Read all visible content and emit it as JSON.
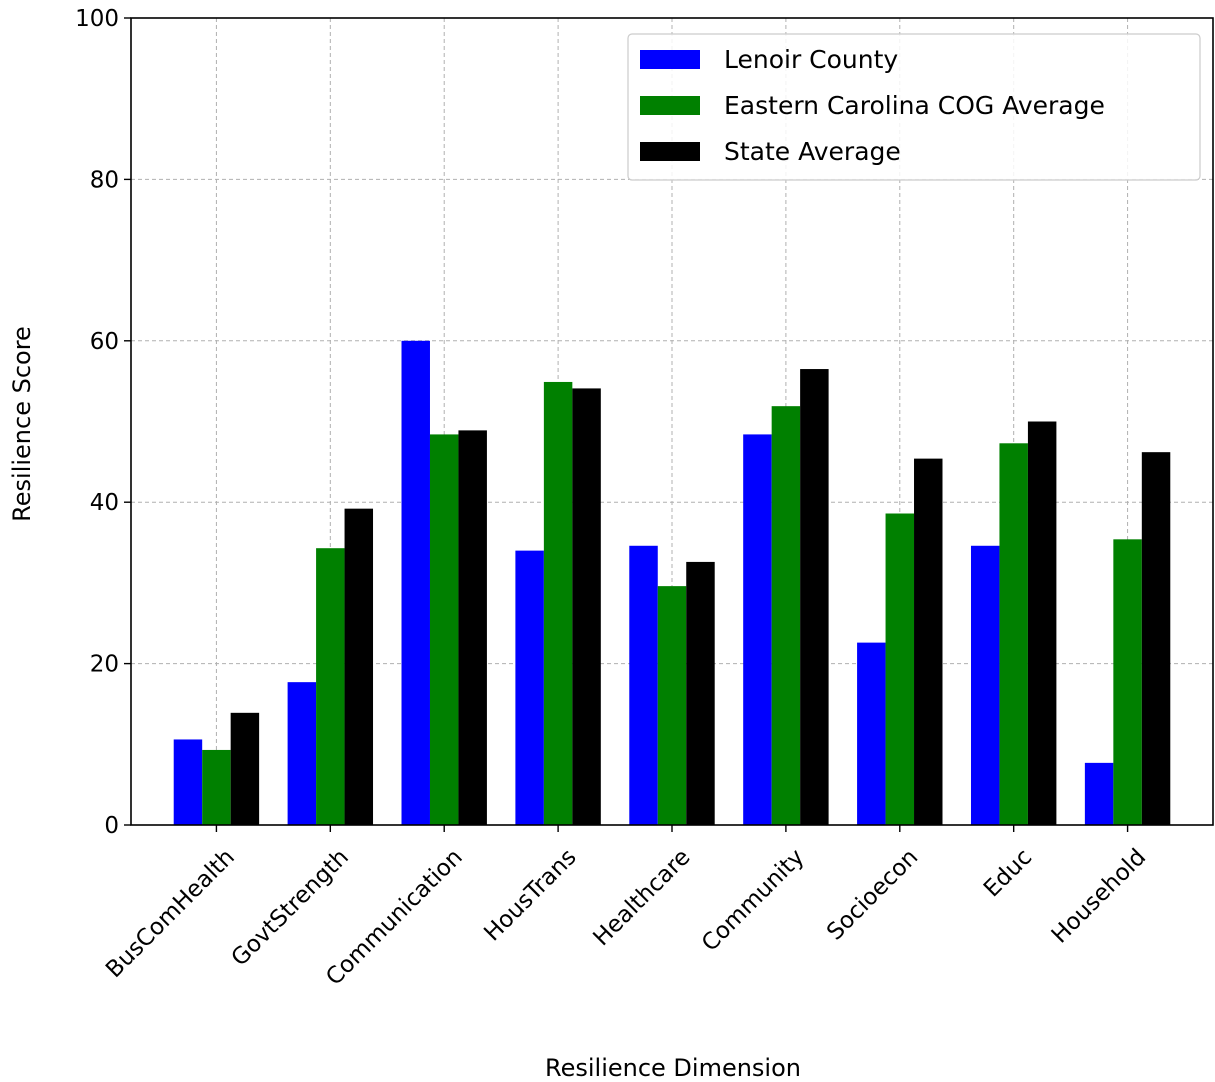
{
  "chart_data": {
    "type": "bar",
    "categories": [
      "BusComHealth",
      "GovtStrength",
      "Communication",
      "HousTrans",
      "Healthcare",
      "Community",
      "Socioecon",
      "Educ",
      "Household"
    ],
    "series": [
      {
        "name": "Lenoir County",
        "color": "#0000ff",
        "values": [
          10.6,
          17.7,
          60.0,
          34.0,
          34.6,
          48.4,
          22.6,
          34.6,
          7.7
        ]
      },
      {
        "name": "Eastern Carolina COG Average",
        "color": "#008000",
        "values": [
          9.3,
          34.3,
          48.4,
          54.9,
          29.6,
          51.9,
          38.6,
          47.3,
          35.4
        ]
      },
      {
        "name": "State Average",
        "color": "#000000",
        "values": [
          13.9,
          39.2,
          48.9,
          54.1,
          32.6,
          56.5,
          45.4,
          50.0,
          46.2
        ]
      }
    ],
    "xlabel": "Resilience Dimension",
    "ylabel": "Resilience Score",
    "ylim": [
      0,
      100
    ],
    "yticks": [
      0,
      20,
      40,
      60,
      80,
      100
    ],
    "grid": true,
    "legend": "top-right"
  }
}
